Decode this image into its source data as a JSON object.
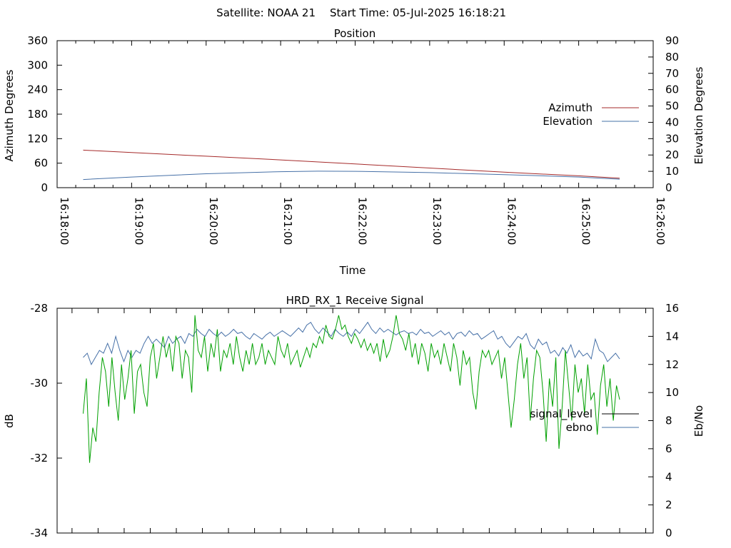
{
  "header": {
    "satellite_label": "Satellite: NOAA 21",
    "start_time_label": "Start Time: 05-Jul-2025 16:18:21"
  },
  "chart_data": [
    {
      "type": "line",
      "title": "Position",
      "xlabel": "Time",
      "ylabel": "Azimuth Degrees",
      "y2label": "Elevation Degrees",
      "x_ticks": [
        "16:18:00",
        "16:19:00",
        "16:20:00",
        "16:21:00",
        "16:22:00",
        "16:23:00",
        "16:24:00",
        "16:25:00",
        "16:26:00"
      ],
      "xlim": [
        "16:18:00",
        "16:26:00"
      ],
      "ylim": [
        0,
        360
      ],
      "y_ticks": [
        0,
        60,
        120,
        180,
        240,
        300,
        360
      ],
      "y2lim": [
        0,
        90
      ],
      "y2_ticks": [
        0,
        10,
        20,
        30,
        40,
        50,
        60,
        70,
        80,
        90
      ],
      "legend_position": "right",
      "grid": false,
      "series": [
        {
          "name": "Azimuth",
          "axis": "y",
          "color": "#a52a2a",
          "x": [
            "16:18:21",
            "16:19:00",
            "16:20:00",
            "16:21:00",
            "16:22:00",
            "16:23:00",
            "16:24:00",
            "16:25:00",
            "16:25:33"
          ],
          "values": [
            92,
            86,
            77,
            68,
            58,
            48,
            38,
            29,
            23
          ]
        },
        {
          "name": "Elevation",
          "axis": "y2",
          "color": "#4670a7",
          "x": [
            "16:18:21",
            "16:19:00",
            "16:20:00",
            "16:21:00",
            "16:21:30",
            "16:22:00",
            "16:23:00",
            "16:24:00",
            "16:25:00",
            "16:25:33"
          ],
          "values": [
            5,
            6.5,
            8.5,
            9.8,
            10.1,
            10,
            9.2,
            8,
            6.5,
            5.2
          ]
        }
      ]
    },
    {
      "type": "line",
      "title": "HRD_RX_1 Receive Signal",
      "xlabel": "",
      "ylabel": "dB",
      "y2label": "Eb/No",
      "xlim": [
        "16:18:00",
        "16:26:00"
      ],
      "x_tick_minutes": [
        0.2,
        0.55,
        0.9,
        1.25,
        1.6,
        1.95,
        2.3,
        2.65,
        3.0,
        3.35,
        3.7,
        4.05,
        4.4,
        4.75,
        5.1,
        5.45,
        5.8,
        6.15,
        6.5,
        6.85,
        7.2,
        7.55,
        7.9
      ],
      "ylim": [
        -34,
        -28
      ],
      "y_ticks": [
        "-34",
        "-32",
        "-30",
        "-28"
      ],
      "y2lim": [
        0,
        16
      ],
      "y2_ticks": [
        0,
        2,
        4,
        6,
        8,
        10,
        12,
        14,
        16
      ],
      "legend_position": "right",
      "grid": false,
      "series": [
        {
          "name": "signal_level",
          "axis": "y",
          "color": "#000000",
          "x_start": "16:18:21",
          "x_end": "16:25:33",
          "values": []
        },
        {
          "name": "ebno",
          "axis": "y2",
          "color": "#4670a7",
          "x_start": "16:18:21",
          "x_end": "16:25:33",
          "values": [
            12.5,
            12.8,
            12,
            12.5,
            13,
            12.8,
            13.5,
            12.8,
            14,
            13,
            12.2,
            13,
            12.5,
            13,
            12.8,
            13.5,
            14,
            13.5,
            13.8,
            13.5,
            13.2,
            14,
            13.5,
            13.8,
            14,
            13.5,
            14.2,
            14,
            14.5,
            14.2,
            14,
            14.5,
            14.2,
            14,
            14.3,
            14,
            14.2,
            14.5,
            14.2,
            14.3,
            14,
            13.8,
            14.2,
            14,
            13.8,
            14.1,
            14.3,
            14,
            14.2,
            14.4,
            14.2,
            14,
            14.3,
            14.6,
            14.3,
            14.8,
            15,
            14.5,
            14.2,
            14.6,
            14.3,
            14,
            14.5,
            14.2,
            14,
            14.3,
            14,
            14.5,
            14.2,
            14.6,
            15,
            14.5,
            14.2,
            14.6,
            14.3,
            14.5,
            14.3,
            14.1,
            14.3,
            14.4,
            14.2,
            14.3,
            14.1,
            14.5,
            14.2,
            14.3,
            14,
            14.2,
            14.4,
            14.1,
            14.3,
            13.8,
            14.2,
            14.3,
            14,
            14.4,
            14.1,
            14.2,
            13.8,
            14,
            14.2,
            14.4,
            13.8,
            14,
            13.5,
            13.2,
            13.6,
            14,
            13.8,
            14.2,
            13.4,
            13.1,
            13.8,
            13.4,
            13.6,
            12.8,
            13,
            12.6,
            13.2,
            12.8,
            13.4,
            12.5,
            13,
            12.6,
            12.8,
            12.4,
            13.8,
            13,
            12.8,
            12.2,
            12.5,
            12.8,
            12.4
          ]
        },
        {
          "name": "",
          "axis": "y2",
          "color": "#00a000",
          "x_start": "16:18:21",
          "x_end": "16:25:33",
          "values": [
            8.5,
            11,
            5,
            7.5,
            6.5,
            10,
            12.5,
            11.5,
            9,
            12.5,
            10,
            8,
            12,
            9.5,
            11,
            13,
            8.5,
            11.5,
            12,
            10,
            9,
            12.5,
            13.5,
            11,
            12.5,
            14,
            12.5,
            13.5,
            11.5,
            14,
            13.5,
            11,
            13,
            12.5,
            10,
            15.5,
            13,
            12.5,
            14,
            11.5,
            13.5,
            12.5,
            14.5,
            11.5,
            13,
            12.5,
            13.5,
            12,
            14,
            12.5,
            11.5,
            13,
            12,
            13.5,
            12,
            12.5,
            13.5,
            12,
            13,
            12.5,
            12,
            14,
            13,
            12.5,
            13.5,
            12,
            12.5,
            13,
            11.8,
            12.5,
            13.2,
            12.5,
            13.5,
            13.2,
            14,
            13.5,
            14.8,
            14,
            13.8,
            14.5,
            15.5,
            14.5,
            14.8,
            14,
            13.5,
            14.2,
            13.8,
            13.2,
            13.8,
            13,
            13.5,
            12.8,
            13.5,
            12.2,
            13.8,
            12.5,
            13,
            14,
            15.5,
            14.2,
            13.8,
            13,
            14.2,
            12.5,
            13.5,
            12,
            13.5,
            12.8,
            11.5,
            13.5,
            12.5,
            13,
            12,
            13.5,
            12.5,
            11.5,
            13.5,
            12.5,
            10.5,
            13,
            12,
            12.5,
            10,
            8.8,
            11.5,
            13,
            12.5,
            13,
            12,
            12.5,
            13,
            11,
            12.5,
            10,
            7.5,
            9.5,
            12,
            13.5,
            11,
            12.5,
            8,
            11,
            13,
            12.5,
            10,
            6.5,
            11,
            9,
            12.5,
            6,
            9,
            13,
            10.5,
            8,
            12,
            10,
            11,
            8.5,
            12,
            9.5,
            10,
            7,
            10.5,
            12,
            9,
            11,
            8,
            10.5,
            9.5
          ]
        }
      ]
    }
  ]
}
